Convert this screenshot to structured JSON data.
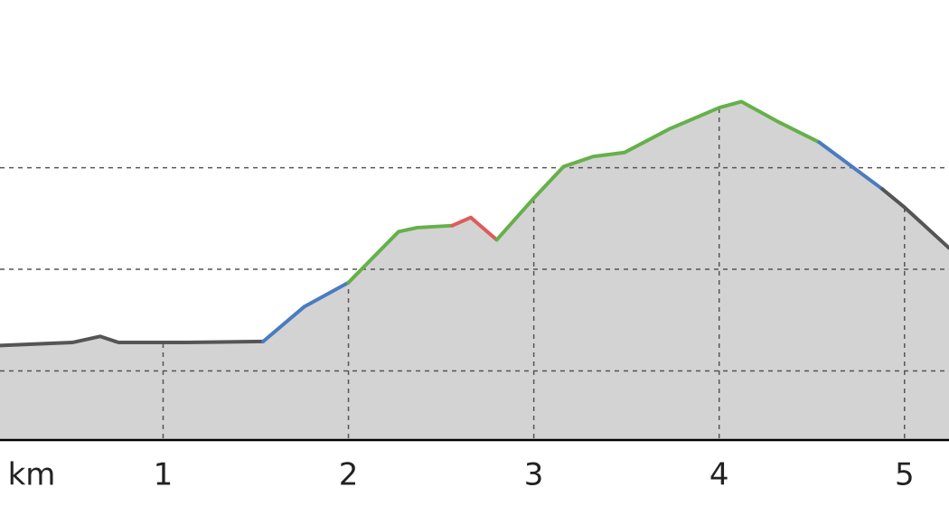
{
  "chart_data": {
    "type": "line",
    "x_label": "km",
    "xlim": [
      0.12,
      5.24
    ],
    "xticks": [
      1,
      2,
      3,
      4,
      5
    ],
    "ylim": [
      0.32,
      4.65
    ],
    "ygrid": [
      1,
      2,
      3
    ],
    "grid": true,
    "fill_color": "#d3d3d3",
    "series": [
      {
        "color": "#555555",
        "x": [
          0.12,
          0.51,
          0.66,
          0.76,
          1.12,
          1.54
        ],
        "values": [
          1.25,
          1.28,
          1.34,
          1.28,
          1.28,
          1.29
        ]
      },
      {
        "color": "#4a7cc0",
        "x": [
          1.54,
          1.76,
          2.0
        ],
        "values": [
          1.29,
          1.63,
          1.87
        ]
      },
      {
        "color": "#66b04a",
        "x": [
          2.0,
          2.27,
          2.37,
          2.56
        ],
        "values": [
          1.87,
          2.37,
          2.41,
          2.43
        ]
      },
      {
        "color": "#e05a5a",
        "x": [
          2.56,
          2.66,
          2.8
        ],
        "values": [
          2.43,
          2.51,
          2.29
        ]
      },
      {
        "color": "#66b04a",
        "x": [
          2.8,
          3.0,
          3.16,
          3.32,
          3.49,
          3.73,
          4.0,
          4.12,
          4.32,
          4.54
        ],
        "values": [
          2.29,
          2.7,
          3.01,
          3.11,
          3.15,
          3.38,
          3.59,
          3.65,
          3.45,
          3.25
        ]
      },
      {
        "color": "#4a7cc0",
        "x": [
          4.54,
          4.88
        ],
        "values": [
          3.25,
          2.79
        ]
      },
      {
        "color": "#555555",
        "x": [
          4.88,
          5.0,
          5.24
        ],
        "values": [
          2.79,
          2.61,
          2.21
        ]
      }
    ]
  }
}
